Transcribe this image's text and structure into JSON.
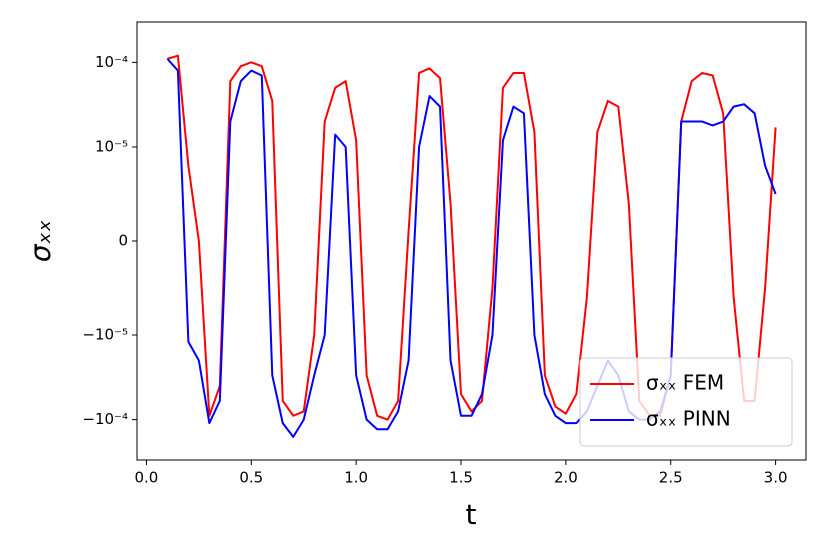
{
  "chart_data": {
    "type": "line",
    "x_label": "t",
    "y_label": "σₓₓ",
    "yscale": "symlog",
    "linthresh": 1e-05,
    "linscale": 1,
    "xlim": [
      -0.045,
      3.145
    ],
    "ylim": [
      -0.0003,
      0.0003
    ],
    "xticks": [
      {
        "value": 0,
        "label": "0.0"
      },
      0.5,
      {
        "value": 1,
        "label": "1.0"
      },
      1.5,
      {
        "value": 2,
        "label": "2.0"
      },
      2.5,
      {
        "value": 3,
        "label": "3.0"
      }
    ],
    "yticks": [
      {
        "value": -0.0001,
        "label": "−10⁻⁴"
      },
      {
        "value": -1e-05,
        "label": "−10⁻⁵"
      },
      0,
      {
        "value": 1e-05,
        "label": "10⁻⁵"
      },
      {
        "value": 0.0001,
        "label": "10⁻⁴"
      }
    ],
    "legend": "lower right",
    "x": [
      0.1,
      0.15,
      0.2,
      0.25,
      0.3,
      0.35,
      0.4,
      0.45,
      0.5,
      0.55,
      0.6,
      0.65,
      0.7,
      0.75,
      0.8,
      0.85,
      0.9,
      0.95,
      1.0,
      1.05,
      1.1,
      1.15,
      1.2,
      1.25,
      1.3,
      1.35,
      1.4,
      1.45,
      1.5,
      1.55,
      1.6,
      1.65,
      1.7,
      1.75,
      1.8,
      1.85,
      1.9,
      1.95,
      2.0,
      2.05,
      2.1,
      2.15,
      2.2,
      2.25,
      2.3,
      2.35,
      2.4,
      2.45,
      2.5,
      2.55,
      2.6,
      2.65,
      2.7,
      2.75,
      2.8,
      2.85,
      2.9,
      2.95,
      3.0
    ],
    "series": [
      {
        "name": "σₓₓ FEM",
        "color": "#ff0000",
        "values": [
          0.00011,
          0.00012,
          8e-06,
          0,
          -9e-05,
          -4e-05,
          6e-05,
          9e-05,
          0.0001,
          9e-05,
          3.5e-05,
          -6e-05,
          -9e-05,
          -8e-05,
          -1e-05,
          2e-05,
          5e-05,
          6e-05,
          1.2e-05,
          -3e-05,
          -9e-05,
          -0.0001,
          -6e-05,
          1e-06,
          7.5e-05,
          8.5e-05,
          6.5e-05,
          4e-06,
          -5e-05,
          -8e-05,
          -6e-05,
          -5e-06,
          5e-05,
          7.5e-05,
          7.5e-05,
          1.5e-05,
          -3e-05,
          -7e-05,
          -8.5e-05,
          -5e-05,
          -6e-06,
          1.5e-05,
          3.5e-05,
          3e-05,
          4e-06,
          -6e-05,
          -9e-05,
          -9e-05,
          -3e-05,
          2e-05,
          6e-05,
          7.5e-05,
          7e-05,
          2.5e-05,
          -6e-06,
          -6e-05,
          -6e-05,
          -5e-06,
          1.7e-05
        ]
      },
      {
        "name": "σₓₓ PINN",
        "color": "#0000ff",
        "values": [
          0.00011,
          8e-05,
          -1.2e-05,
          -2e-05,
          -0.00011,
          -6e-05,
          2e-05,
          6e-05,
          8e-05,
          7e-05,
          -3e-05,
          -0.00011,
          -0.00016,
          -0.0001,
          -3e-05,
          -1e-05,
          1.4e-05,
          1e-05,
          -3e-05,
          -0.0001,
          -0.00013,
          -0.00013,
          -8e-05,
          -2e-05,
          1e-05,
          4e-05,
          3e-05,
          -2e-05,
          -9e-05,
          -9e-05,
          -5e-05,
          -1e-05,
          1.2e-05,
          3e-05,
          2.5e-05,
          -1e-05,
          -5e-05,
          -9e-05,
          -0.00011,
          -0.00011,
          -8e-05,
          -4e-05,
          -2e-05,
          -3e-05,
          -8e-05,
          -0.0001,
          -0.0001,
          -8e-05,
          -3e-05,
          2e-05,
          2e-05,
          2e-05,
          1.8e-05,
          2e-05,
          3e-05,
          3.2e-05,
          2.5e-05,
          8e-06,
          5e-06
        ]
      }
    ]
  }
}
